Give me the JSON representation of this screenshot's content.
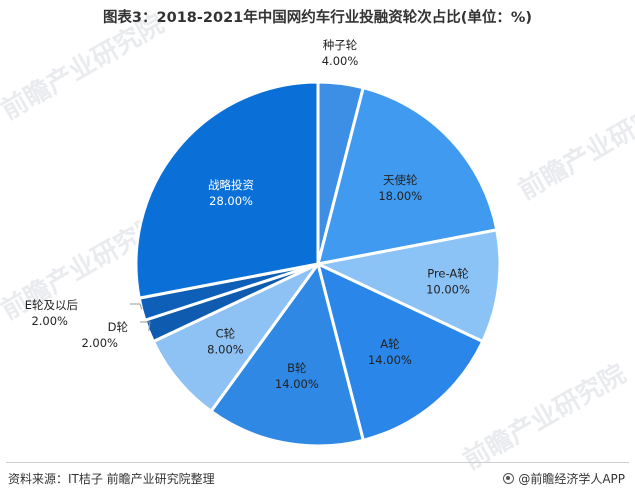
{
  "title": "图表3：2018-2021年中国网约车行业投融资轮次占比(单位：%)",
  "source": "资料来源：IT桔子 前瞻产业研究院整理",
  "brand": "@前瞻经济学人APP",
  "watermark": "前瞻产业研究院",
  "colors": {
    "seed": "#3d8fe6",
    "angel": "#3f9af0",
    "preA": "#8cc3f7",
    "A": "#2a86e8",
    "B": "#2e88e4",
    "C": "#8ec2f4",
    "D": "#0e5bb0",
    "E": "#0e5fb8",
    "strategic": "#0a70d8"
  },
  "chart_data": {
    "type": "pie",
    "title": "图表3：2018-2021年中国网约车行业投融资轮次占比(单位：%)",
    "unit": "%",
    "slices": [
      {
        "label": "种子轮",
        "value": 4.0,
        "value_label": "4.00%",
        "color_key": "seed"
      },
      {
        "label": "天使轮",
        "value": 18.0,
        "value_label": "18.00%",
        "color_key": "angel"
      },
      {
        "label": "Pre-A轮",
        "value": 10.0,
        "value_label": "10.00%",
        "color_key": "preA"
      },
      {
        "label": "A轮",
        "value": 14.0,
        "value_label": "14.00%",
        "color_key": "A"
      },
      {
        "label": "B轮",
        "value": 14.0,
        "value_label": "14.00%",
        "color_key": "B"
      },
      {
        "label": "C轮",
        "value": 8.0,
        "value_label": "8.00%",
        "color_key": "C"
      },
      {
        "label": "D轮",
        "value": 2.0,
        "value_label": "2.00%",
        "color_key": "D"
      },
      {
        "label": "E轮及以后",
        "value": 2.0,
        "value_label": "2.00%",
        "color_key": "E"
      },
      {
        "label": "战略投资",
        "value": 28.0,
        "value_label": "28.00%",
        "color_key": "strategic"
      }
    ]
  }
}
